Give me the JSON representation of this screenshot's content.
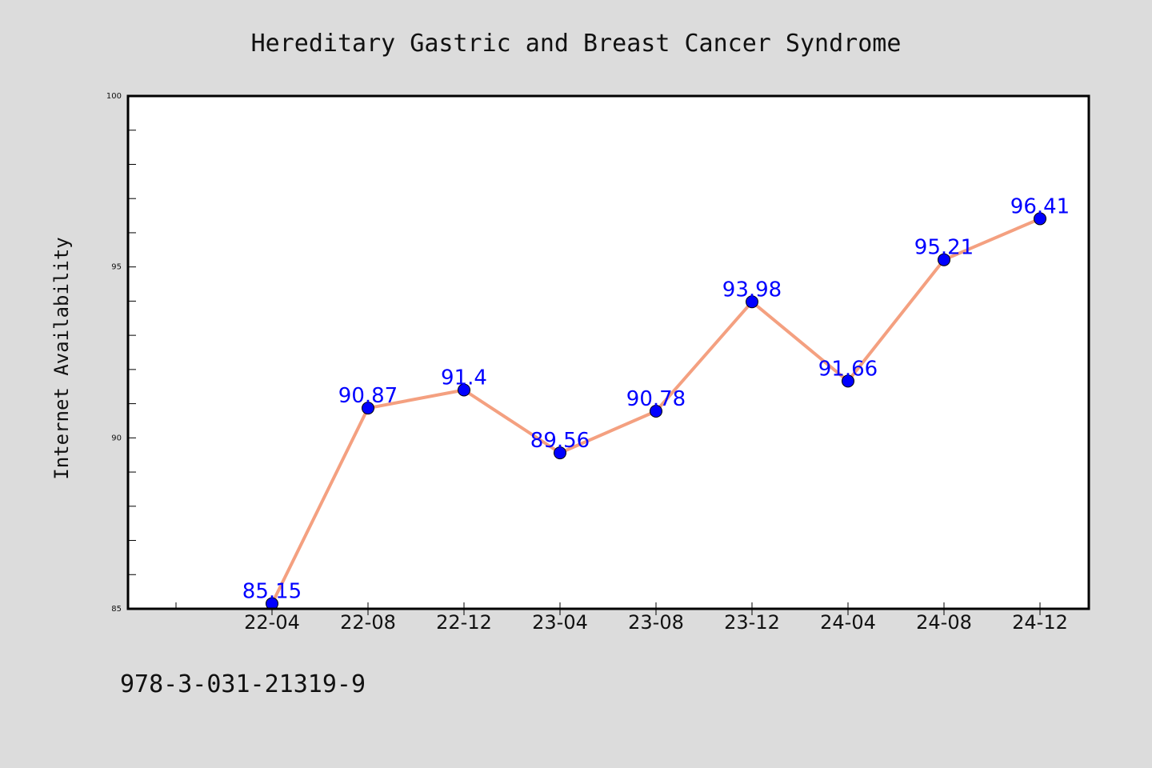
{
  "chart_data": {
    "type": "line",
    "title": "Hereditary Gastric and Breast Cancer Syndrome",
    "xlabel": "",
    "ylabel": "Internet Availability",
    "categories": [
      "22-04",
      "22-08",
      "22-12",
      "23-04",
      "23-08",
      "23-12",
      "24-04",
      "24-08",
      "24-12"
    ],
    "series": [
      {
        "values": [
          85.15,
          90.87,
          91.4,
          89.56,
          90.78,
          93.98,
          91.66,
          95.21,
          96.41
        ],
        "data_labels": [
          "85.15",
          "90.87",
          "91.4",
          "89.56",
          "90.78",
          "93.98",
          "91.66",
          "95.21",
          "96.41"
        ],
        "line_color": "#f4a080",
        "marker_color": "#0000ff"
      }
    ],
    "ylim": [
      85,
      100
    ],
    "yticks": [
      "85",
      "90",
      "95",
      "100"
    ],
    "grid": false,
    "legend": "none",
    "background": "#dcdcdc",
    "plot_background": "#ffffff"
  },
  "footnote": "978-3-031-21319-9"
}
